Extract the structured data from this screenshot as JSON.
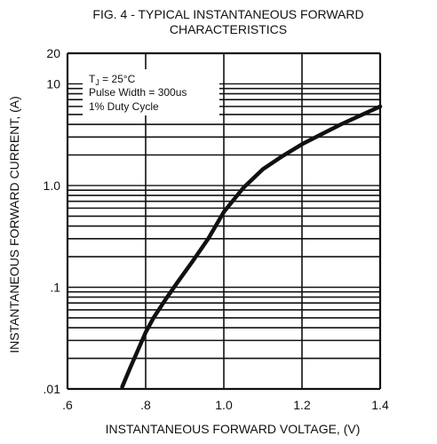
{
  "chart_data": {
    "type": "line",
    "title_line1": "FIG. 4 - TYPICAL INSTANTANEOUS FORWARD",
    "title_line2": "CHARACTERISTICS",
    "xlabel": "INSTANTANEOUS FORWARD VOLTAGE, (V)",
    "ylabel": "INSTANTANEOUS FORWARD CURRENT, (A)",
    "xlim": [
      0.6,
      1.4
    ],
    "ylim": [
      0.01,
      20
    ],
    "yscale": "log",
    "x_ticks": [
      {
        "value": 0.6,
        "label": ".6"
      },
      {
        "value": 0.8,
        "label": ".8"
      },
      {
        "value": 1.0,
        "label": "1.0"
      },
      {
        "value": 1.2,
        "label": "1.2"
      },
      {
        "value": 1.4,
        "label": "1.4"
      }
    ],
    "y_ticks": [
      {
        "value": 0.01,
        "label": ".01"
      },
      {
        "value": 0.1,
        "label": ".1"
      },
      {
        "value": 1,
        "label": "1.0"
      },
      {
        "value": 10,
        "label": "10"
      },
      {
        "value": 20,
        "label": "20"
      }
    ],
    "grid": true,
    "annotations": {
      "tj_prefix": "T",
      "tj_sub": "J",
      "tj_value": " = 25°C",
      "pulse": "Pulse Width = 300us",
      "duty": "1% Duty Cycle"
    },
    "series": [
      {
        "x": [
          0.74,
          0.76,
          0.78,
          0.8,
          0.82,
          0.85,
          0.88,
          0.92,
          0.96,
          1.0,
          1.05,
          1.1,
          1.15,
          1.2,
          1.25,
          1.3,
          1.35,
          1.4
        ],
        "y": [
          0.0105,
          0.016,
          0.024,
          0.036,
          0.05,
          0.075,
          0.11,
          0.18,
          0.3,
          0.55,
          0.95,
          1.45,
          1.95,
          2.55,
          3.2,
          4.0,
          4.9,
          6.0
        ]
      }
    ],
    "line_color": "#111111",
    "grid_color": "#111111"
  }
}
